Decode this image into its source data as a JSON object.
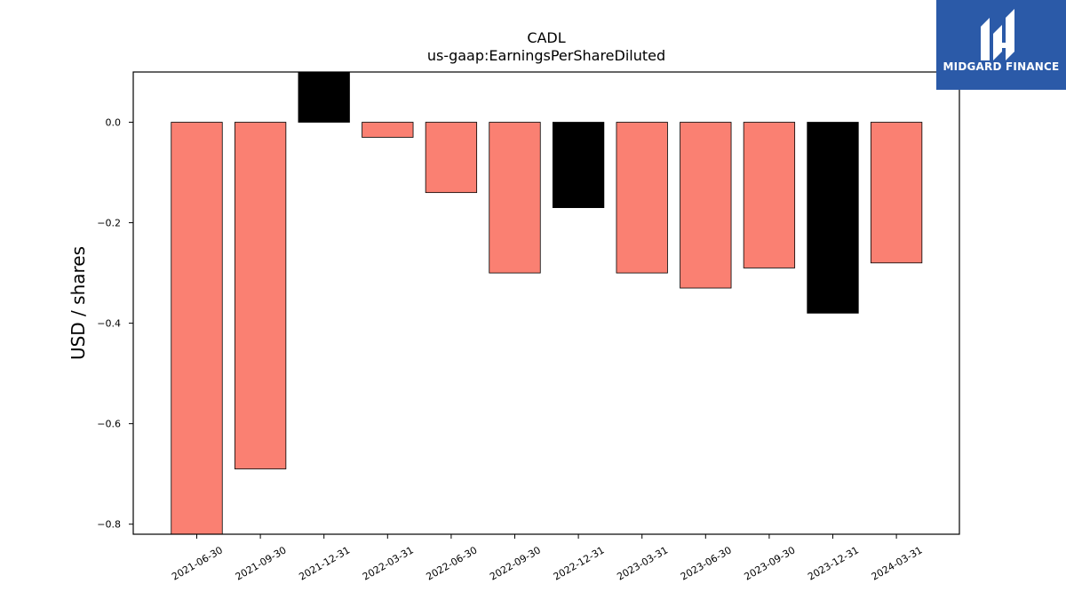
{
  "colors": {
    "positive_bar": "#fa8072",
    "highlight_bar": "#000000",
    "logo_background": "#2b5aa8"
  },
  "brand": {
    "name": "MIDGARD FINANCE"
  },
  "chart_data": {
    "type": "bar",
    "title": "CADL",
    "subtitle": "us-gaap:EarningsPerShareDiluted",
    "xlabel": "",
    "ylabel": "USD / shares",
    "categories": [
      "2021-06-30",
      "2021-09-30",
      "2021-12-31",
      "2022-03-31",
      "2022-06-30",
      "2022-09-30",
      "2022-12-31",
      "2023-03-31",
      "2023-06-30",
      "2023-09-30",
      "2023-12-31",
      "2024-03-31"
    ],
    "values": [
      -0.82,
      -0.69,
      0.1,
      -0.03,
      -0.14,
      -0.3,
      -0.17,
      -0.3,
      -0.33,
      -0.29,
      -0.38,
      -0.28
    ],
    "bar_colors": [
      "salmon",
      "salmon",
      "black",
      "salmon",
      "salmon",
      "salmon",
      "black",
      "salmon",
      "salmon",
      "salmon",
      "black",
      "salmon"
    ],
    "ylim": [
      -0.82,
      0.1
    ],
    "yticks": [
      0.0,
      -0.2,
      -0.4,
      -0.6,
      -0.8
    ],
    "ytick_labels": [
      "0.0",
      "−0.2",
      "−0.4",
      "−0.6",
      "−0.8"
    ],
    "grid": false,
    "legend": "none"
  }
}
